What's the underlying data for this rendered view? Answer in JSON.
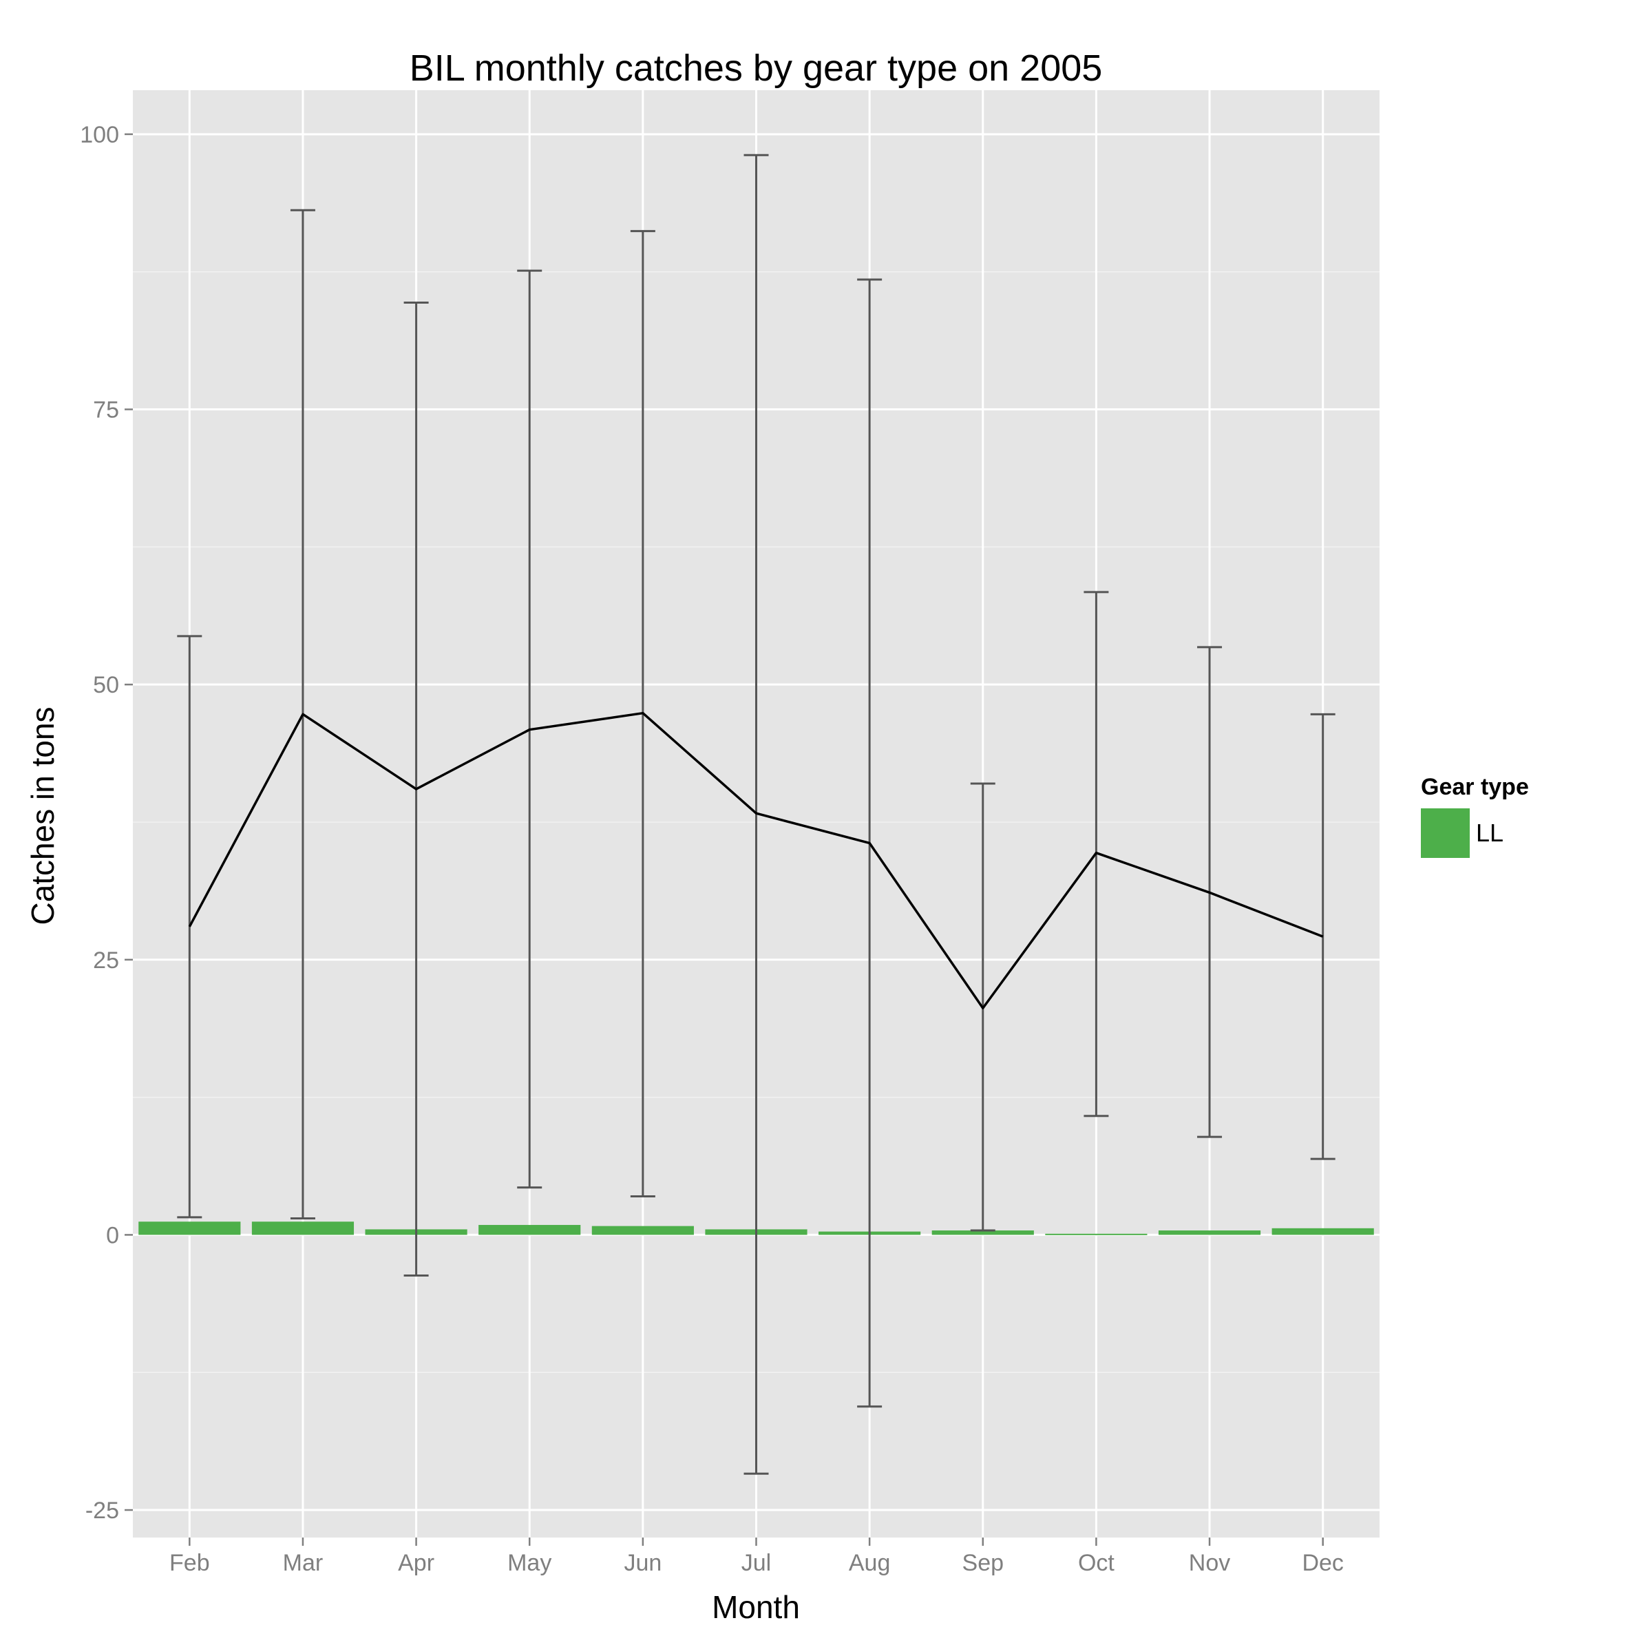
{
  "chart_data": {
    "type": "bar",
    "title": "BIL monthly catches by gear type on 2005",
    "xlabel": "Month",
    "ylabel": "Catches in tons",
    "categories": [
      "Feb",
      "Mar",
      "Apr",
      "May",
      "Jun",
      "Jul",
      "Aug",
      "Sep",
      "Oct",
      "Nov",
      "Dec"
    ],
    "ylim": [
      -27.5,
      104
    ],
    "yticks": [
      -25,
      0,
      25,
      50,
      75,
      100
    ],
    "ytick_labels": [
      "-25",
      "0",
      "25",
      "50",
      "75",
      "100"
    ],
    "grid": true,
    "legend": {
      "title": "Gear type",
      "placement": "right",
      "entries": [
        {
          "label": "LL",
          "color": "#4daf4a"
        }
      ]
    },
    "series": [
      {
        "name": "LL",
        "kind": "bar",
        "color": "#4daf4a",
        "values": [
          1.2,
          1.2,
          0.5,
          0.9,
          0.8,
          0.5,
          0.3,
          0.4,
          0.1,
          0.4,
          0.6
        ]
      },
      {
        "kind": "line",
        "color": "#000000",
        "values": [
          28.0,
          47.3,
          40.5,
          45.9,
          47.4,
          38.3,
          35.6,
          20.6,
          34.7,
          31.1,
          27.1
        ]
      },
      {
        "kind": "errorbar",
        "color": "#555555",
        "lower": [
          1.6,
          1.5,
          -3.7,
          4.3,
          3.5,
          -21.7,
          -15.6,
          0.4,
          10.8,
          8.9,
          6.9
        ],
        "upper": [
          54.4,
          93.1,
          84.7,
          87.6,
          91.2,
          98.1,
          86.8,
          41.0,
          58.4,
          53.4,
          47.3
        ]
      }
    ],
    "colors": {
      "panel": "#e5e5e5",
      "grid_major": "#ffffff",
      "grid_minor": "#f2f2f2",
      "tick_label": "#7f7f7f"
    }
  }
}
